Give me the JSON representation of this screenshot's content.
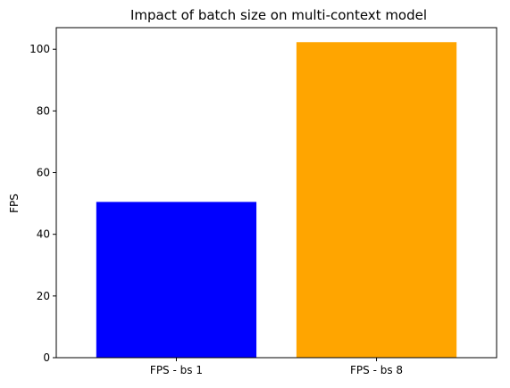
{
  "chart_data": {
    "type": "bar",
    "title": "Impact of batch size on multi-context model",
    "xlabel": "",
    "ylabel": "FPS",
    "categories": [
      "FPS - bs 1",
      "FPS - bs 8"
    ],
    "values": [
      50.5,
      102.3
    ],
    "colors": [
      "#0000ff",
      "#ffa500"
    ],
    "ylim": [
      0,
      107
    ],
    "yticks": [
      0,
      20,
      40,
      60,
      80,
      100
    ],
    "grid": false,
    "legend": "none"
  }
}
